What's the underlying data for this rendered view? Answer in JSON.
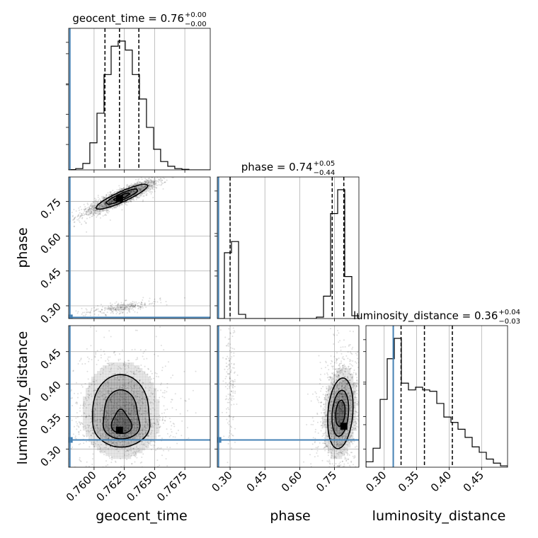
{
  "chart_data": {
    "type": "corner",
    "truth_color": "#4682b4",
    "parameters": [
      "geocent_time",
      "phase",
      "luminosity_distance"
    ],
    "axis_labels": [
      "geocent_time",
      "phase",
      "luminosity_distance"
    ],
    "ranges": {
      "geocent_time": [
        0.7579,
        0.7696
      ],
      "phase": [
        0.245,
        0.855
      ],
      "luminosity_distance": [
        0.272,
        0.49
      ]
    },
    "ticks": {
      "geocent_time": [
        0.76,
        0.7625,
        0.765,
        0.7675
      ],
      "phase": [
        0.3,
        0.45,
        0.6,
        0.75
      ],
      "luminosity_distance": [
        0.3,
        0.35,
        0.4,
        0.45
      ]
    },
    "tick_labels": {
      "geocent_time": [
        "0.7600",
        "0.7625",
        "0.7650",
        "0.7675"
      ],
      "phase": [
        "0.30",
        "0.45",
        "0.60",
        "0.75"
      ],
      "luminosity_distance": [
        "0.30",
        "0.35",
        "0.40",
        "0.45"
      ]
    },
    "truths": {
      "geocent_time": 0.758,
      "phase": 0.25,
      "luminosity_distance": 0.314
    },
    "titles": [
      {
        "param": "geocent_time",
        "text": "geocent_time = 0.76",
        "sup": "+0.00",
        "sub": "−0.00"
      },
      {
        "param": "phase",
        "text": "phase = 0.74",
        "sup": "+0.05",
        "sub": "−0.44"
      },
      {
        "param": "luminosity_distance",
        "text": "luminosity_distance = 0.36",
        "sup": "+0.04",
        "sub": "−0.03"
      }
    ],
    "quantiles": {
      "geocent_time": [
        0.7609,
        0.7621,
        0.7637
      ],
      "phase": [
        0.3,
        0.74,
        0.79
      ],
      "luminosity_distance": [
        0.326,
        0.362,
        0.405
      ]
    },
    "histograms": {
      "geocent_time": {
        "edges": [
          0.7579,
          0.75848,
          0.75907,
          0.75965,
          0.76024,
          0.76082,
          0.76141,
          0.76199,
          0.76258,
          0.76316,
          0.76375,
          0.76433,
          0.76492,
          0.7655,
          0.76609,
          0.76667,
          0.76726,
          0.76784,
          0.76843,
          0.76901,
          0.7696
        ],
        "counts": [
          0.002,
          0.01,
          0.05,
          0.21,
          0.44,
          0.74,
          0.96,
          1.0,
          0.93,
          0.74,
          0.55,
          0.33,
          0.16,
          0.065,
          0.028,
          0.01,
          0.004,
          0.0,
          0.0,
          0.0
        ]
      },
      "phase": {
        "edges": [
          0.245,
          0.2755,
          0.306,
          0.3365,
          0.367,
          0.3975,
          0.428,
          0.4585,
          0.489,
          0.5195,
          0.55,
          0.5805,
          0.611,
          0.6415,
          0.672,
          0.7025,
          0.733,
          0.7635,
          0.794,
          0.8245,
          0.855
        ],
        "counts": [
          0.0,
          0.47,
          0.55,
          0.03,
          0.0,
          0.0,
          0.0,
          0.0,
          0.0,
          0.0,
          0.0,
          0.0,
          0.0,
          0.0,
          0.01,
          0.16,
          0.75,
          0.92,
          0.3,
          0.02
        ]
      },
      "luminosity_distance": {
        "edges": [
          0.272,
          0.2829,
          0.2938,
          0.3047,
          0.3156,
          0.3265,
          0.3374,
          0.3483,
          0.3592,
          0.3701,
          0.381,
          0.3919,
          0.4028,
          0.4137,
          0.4246,
          0.4355,
          0.4464,
          0.4573,
          0.4682,
          0.4791,
          0.49
        ],
        "counts": [
          0.04,
          0.14,
          0.5,
          0.8,
          0.95,
          0.62,
          0.57,
          0.59,
          0.57,
          0.56,
          0.47,
          0.37,
          0.33,
          0.28,
          0.22,
          0.15,
          0.11,
          0.06,
          0.03,
          0.01
        ]
      }
    },
    "density_2d": [
      {
        "x": "geocent_time",
        "y": "phase",
        "modes": [
          {
            "cx": 0.7623,
            "cy": 0.77,
            "sx": 0.0014,
            "sy": 0.035,
            "corr": 0.9,
            "weight": 0.82
          },
          {
            "cx": 0.7623,
            "cy": 0.293,
            "sx": 0.0012,
            "sy": 0.012,
            "corr": 0.7,
            "weight": 0.18
          }
        ],
        "peaks": [
          {
            "x": 0.7621,
            "y": 0.762
          }
        ],
        "levels": [
          0.3,
          0.6,
          0.85
        ]
      },
      {
        "x": "geocent_time",
        "y": "luminosity_distance",
        "modes": [
          {
            "cx": 0.7622,
            "cy": 0.36,
            "sx": 0.0016,
            "sy": 0.038,
            "corr": 0.0,
            "weight": 0.7
          },
          {
            "cx": 0.7624,
            "cy": 0.33,
            "sx": 0.0013,
            "sy": 0.012,
            "corr": 0.0,
            "weight": 0.3
          }
        ],
        "peaks": [
          {
            "x": 0.7621,
            "y": 0.329
          }
        ],
        "levels": [
          0.3,
          0.6,
          0.85
        ]
      },
      {
        "x": "phase",
        "y": "luminosity_distance",
        "modes": [
          {
            "cx": 0.3,
            "cy": 0.405,
            "sx": 0.01,
            "sy": 0.035,
            "corr": 0.0,
            "weight": 0.12
          },
          {
            "cx": 0.775,
            "cy": 0.355,
            "sx": 0.035,
            "sy": 0.035,
            "corr": 0.2,
            "weight": 0.88
          }
        ],
        "peaks": [
          {
            "x": 0.79,
            "y": 0.335
          }
        ],
        "levels": [
          0.3,
          0.6,
          0.85
        ]
      }
    ]
  }
}
